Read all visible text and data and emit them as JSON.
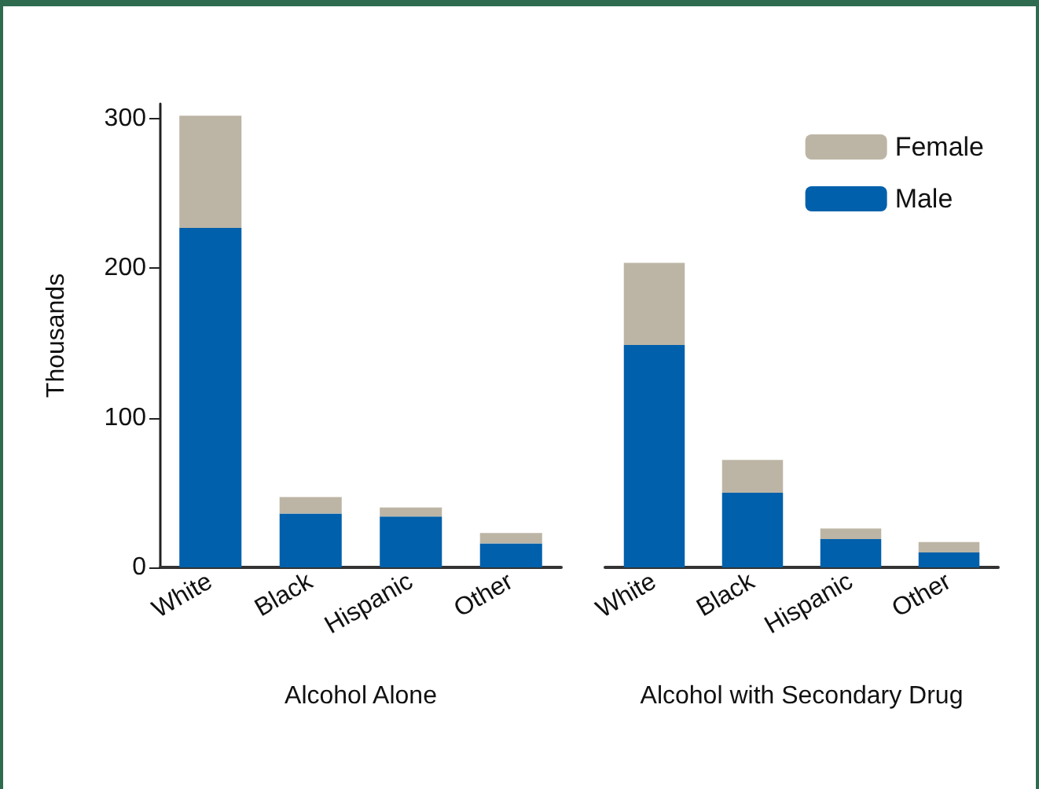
{
  "chart_data": [
    {
      "type": "bar",
      "stacked": true,
      "xlabel": "Alcohol Alone",
      "ylabel": "Thousands",
      "categories": [
        "White",
        "Black",
        "Hispanic",
        "Other"
      ],
      "ylim": [
        0,
        310
      ],
      "yticks": [
        0,
        100,
        200,
        300
      ],
      "series": [
        {
          "color": "#0060ab",
          "values": [
            227,
            36,
            34,
            16
          ]
        },
        {
          "color": "#bcb5a5",
          "values": [
            75,
            11,
            6,
            7
          ]
        }
      ]
    },
    {
      "type": "bar",
      "stacked": true,
      "xlabel": "Alcohol with Secondary Drug",
      "categories": [
        "White",
        "Black",
        "Hispanic",
        "Other"
      ],
      "ylim": [
        0,
        300
      ],
      "yticks": [
        0,
        100,
        200,
        300
      ],
      "tick_labels": "x",
      "legend": "top right",
      "series": [
        {
          "name": "Male",
          "color": "#0060ab",
          "values": [
            149,
            50,
            19,
            10
          ]
        },
        {
          "name": "Female",
          "color": "#bcb5a5",
          "values": [
            55,
            22,
            7,
            7
          ]
        }
      ]
    }
  ]
}
